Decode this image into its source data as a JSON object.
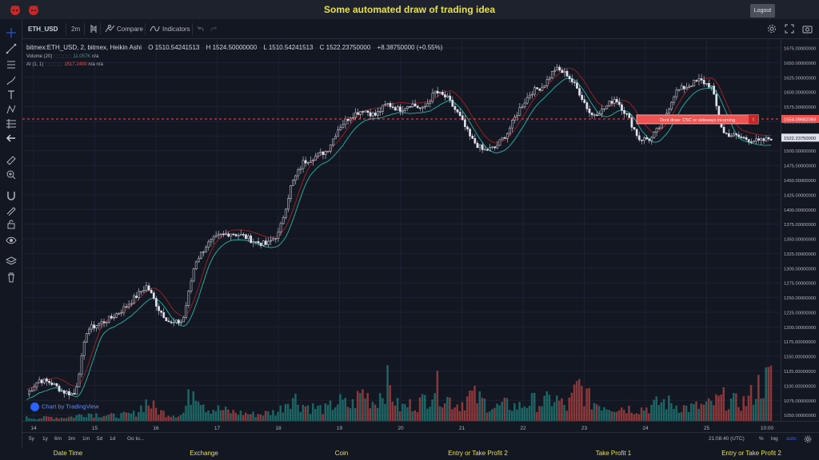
{
  "app": {
    "title": "Some automated draw of trading idea",
    "logout_label": "Logout"
  },
  "toolbar": {
    "symbol": "ETH_USD",
    "interval": "2m",
    "compare_label": "Compare",
    "indicators_label": "Indicators"
  },
  "legend": {
    "main_title": "bitmex:ETH_USD, 2, bitmex, Heikin Ashi",
    "open": "O 1510.54241513",
    "high": "H 1524.50000000",
    "low": "L 1510.54241513",
    "close": "C 1522.23750000",
    "change": "+8.38750000 (+0.55%)",
    "volume_label": "Volume (20)",
    "volume_value": "11.057K",
    "volume_na": "n/a",
    "ai_label": "AI (1, 1)",
    "ai_val1": "1517.2400",
    "ai_na1": "n/a",
    "ai_na2": "n/a"
  },
  "annotation": {
    "text": "Dont draw: CSC or sideways incoming",
    "marker": "!"
  },
  "price_scale": {
    "labels": [
      "1675.00000000",
      "1650.00000000",
      "1625.00000000",
      "1600.00000000",
      "1575.00000000",
      "1550.00000000",
      "1525.00000000",
      "1500.00000000",
      "1475.00000000",
      "1450.00000000",
      "1425.00000000",
      "1400.00000000",
      "1375.00000000",
      "1350.00000000",
      "1325.00000000",
      "1300.00000000",
      "1275.00000000",
      "1250.00000000",
      "1225.00000000",
      "1200.00000000",
      "1175.00000000",
      "1150.00000000",
      "1125.00000000",
      "1100.00000000",
      "1075.00000000",
      "1050.00000000"
    ],
    "dashed_level_label": "1554.09982069",
    "last_price_label": "1522.23750000"
  },
  "time_scale": {
    "labels": [
      "14",
      "15",
      "16",
      "17",
      "18",
      "19",
      "20",
      "21",
      "22",
      "23",
      "24",
      "25",
      "10:00"
    ]
  },
  "bottom_bar": {
    "ranges": [
      "5y",
      "1y",
      "6m",
      "3m",
      "1m",
      "5d",
      "1d"
    ],
    "goto_label": "Go to...",
    "clock": "21:08:40 (UTC)",
    "pct": "%",
    "log": "log",
    "auto": "auto"
  },
  "tv_logo": "Chart by TradingView",
  "footer": {
    "labels": [
      "Date Time",
      "Exchange",
      "Coin",
      "Entry or Take Profit 2",
      "Take Profit 1",
      "Entry or Take Profit 2"
    ]
  },
  "colors": {
    "background": "#131722",
    "up": "#e0e3eb",
    "down": "#e0e3eb",
    "ma_up": "#26a69a",
    "ma_down": "#c62828",
    "volume_up": "#26a69a",
    "volume_down": "#ef5350",
    "accent": "#e8e04a"
  },
  "chart_data": {
    "type": "candlestick",
    "ylim": [
      1040,
      1690
    ],
    "x_labels": [
      "14",
      "15",
      "16",
      "17",
      "18",
      "19",
      "20",
      "21",
      "22",
      "23",
      "24",
      "25",
      "10:00"
    ],
    "close_path": [
      1085,
      1110,
      1105,
      1090,
      1085,
      1195,
      1205,
      1215,
      1230,
      1250,
      1270,
      1230,
      1205,
      1210,
      1310,
      1340,
      1355,
      1360,
      1355,
      1345,
      1340,
      1360,
      1440,
      1480,
      1490,
      1500,
      1540,
      1560,
      1570,
      1560,
      1580,
      1570,
      1580,
      1570,
      1600,
      1590,
      1560,
      1520,
      1500,
      1505,
      1530,
      1570,
      1600,
      1610,
      1640,
      1630,
      1600,
      1560,
      1570,
      1590,
      1560,
      1520,
      1520,
      1550,
      1600,
      1610,
      1620,
      1610,
      1530,
      1525,
      1520,
      1515,
      1522
    ],
    "volume_series": [
      0.05,
      0.04,
      0.06,
      0.05,
      0.07,
      0.12,
      0.1,
      0.08,
      0.09,
      0.11,
      0.3,
      0.15,
      0.1,
      0.09,
      0.6,
      0.2,
      0.18,
      0.14,
      0.12,
      0.1,
      0.12,
      0.15,
      0.4,
      0.25,
      0.2,
      0.18,
      0.3,
      0.22,
      0.45,
      0.28,
      0.6,
      0.2,
      0.25,
      0.3,
      0.55,
      0.35,
      0.25,
      0.4,
      0.3,
      0.2,
      0.25,
      0.22,
      0.3,
      0.28,
      0.35,
      0.2,
      0.55,
      0.3,
      0.25,
      0.22,
      0.2,
      0.18,
      0.22,
      0.3,
      0.25,
      0.2,
      0.22,
      0.25,
      0.35,
      0.28,
      0.3,
      0.55,
      0.65
    ]
  }
}
